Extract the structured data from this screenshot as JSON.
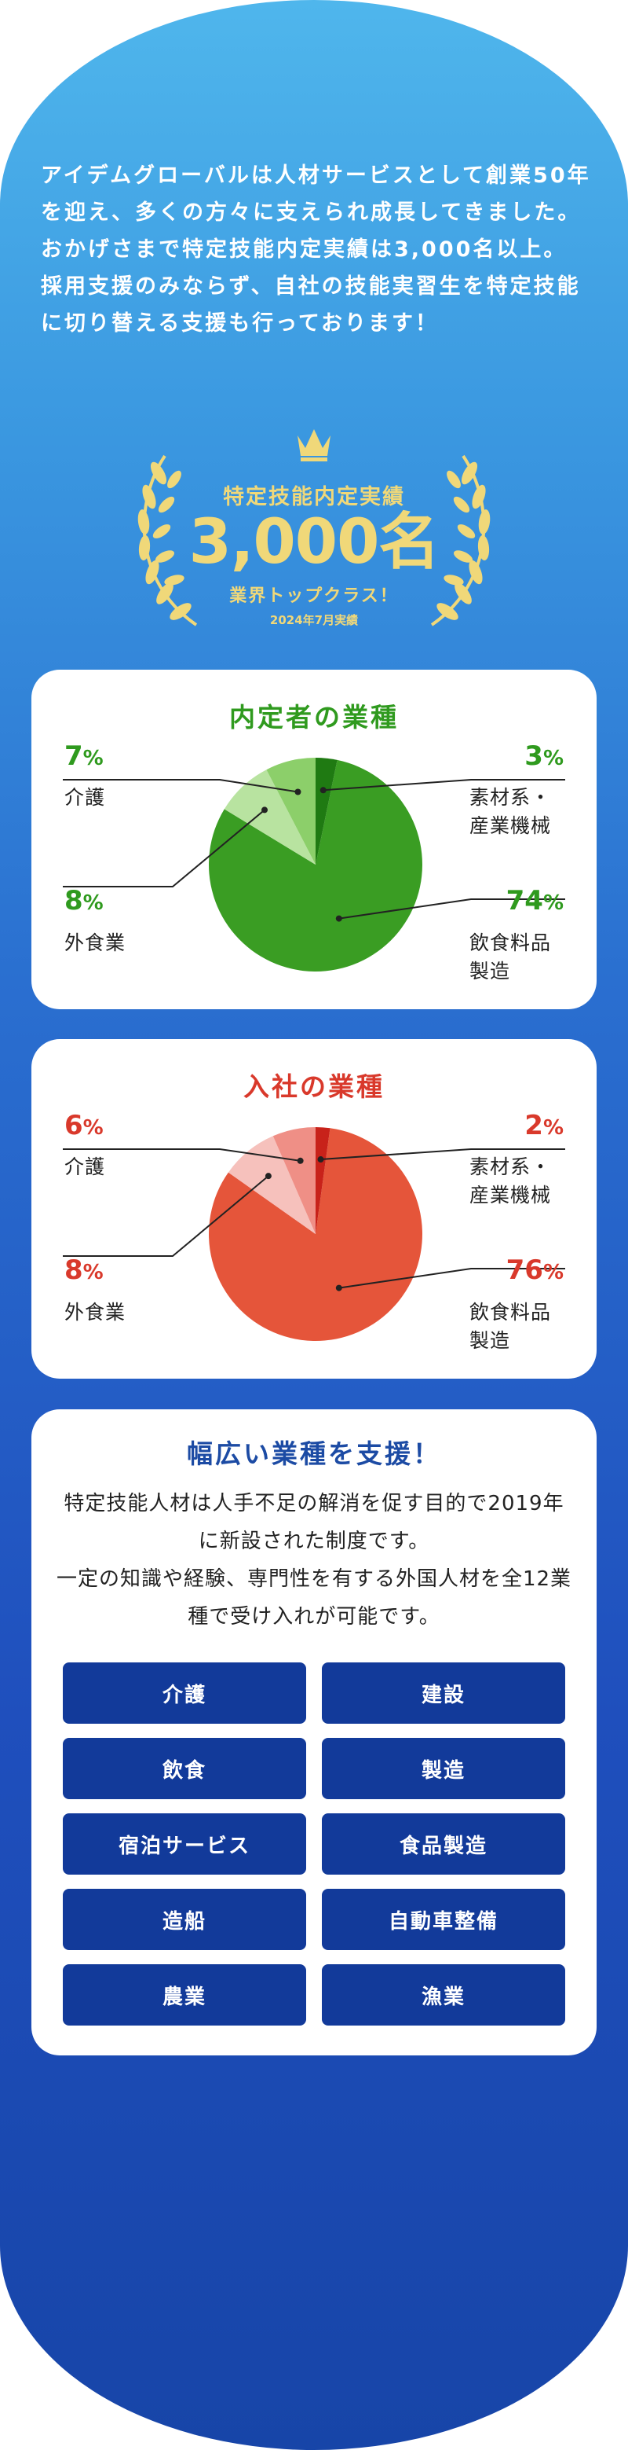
{
  "intro": {
    "lines": [
      "アイデムグローバルは人材サービスとして創業50年を迎え、多くの方々に支えられ成長してきました。おかげさまで特定技能内定実績は3,000名以上。",
      "採用支援のみならず、自社の技能実習生を特定技能に切り替える支援も行っております！"
    ]
  },
  "award": {
    "title": "特定技能内定実績",
    "number": "3,000名",
    "sub": "業界トップクラス！",
    "date": "2024年7月実績"
  },
  "colors": {
    "green_main": "#3a9d23",
    "green_light": "#8ccf6a",
    "green_pale": "#b8e3a0",
    "green_dark": "#1f7a12",
    "red_main": "#e5553a",
    "red_light": "#ef8f86",
    "red_pale": "#f6c1bc",
    "red_dark": "#c8221a",
    "navy": "#123a9a"
  },
  "chart_data": [
    {
      "type": "pie",
      "title": "内定者の業種",
      "categories": [
        "飲食料品製造",
        "外食業",
        "介護",
        "素材系・産業機械"
      ],
      "values": [
        74,
        8,
        7,
        3
      ],
      "labels": [
        {
          "pct": "74",
          "unit": "%",
          "name_lines": [
            "飲食料品",
            "製造"
          ]
        },
        {
          "pct": "8",
          "unit": "%",
          "name_lines": [
            "外食業"
          ]
        },
        {
          "pct": "7",
          "unit": "%",
          "name_lines": [
            "介護"
          ]
        },
        {
          "pct": "3",
          "unit": "%",
          "name_lines": [
            "素材系・",
            "産業機械"
          ]
        }
      ]
    },
    {
      "type": "pie",
      "title": "入社の業種",
      "categories": [
        "飲食料品製造",
        "外食業",
        "介護",
        "素材系・産業機械"
      ],
      "values": [
        76,
        8,
        6,
        2
      ],
      "labels": [
        {
          "pct": "76",
          "unit": "%",
          "name_lines": [
            "飲食料品",
            "製造"
          ]
        },
        {
          "pct": "8",
          "unit": "%",
          "name_lines": [
            "外食業"
          ]
        },
        {
          "pct": "6",
          "unit": "%",
          "name_lines": [
            "介護"
          ]
        },
        {
          "pct": "2",
          "unit": "%",
          "name_lines": [
            "素材系・",
            "産業機械"
          ]
        }
      ]
    }
  ],
  "support": {
    "title": "幅広い業種を支援！",
    "desc": [
      "特定技能人材は人手不足の解消を促す目的で2019年に新設された制度です。",
      "一定の知識や経験、専門性を有する外国人材を全12業種で受け入れが可能です。"
    ],
    "industries": [
      "介護",
      "建設",
      "飲食",
      "製造",
      "宿泊サービス",
      "食品製造",
      "造船",
      "自動車整備",
      "農業",
      "漁業"
    ]
  }
}
